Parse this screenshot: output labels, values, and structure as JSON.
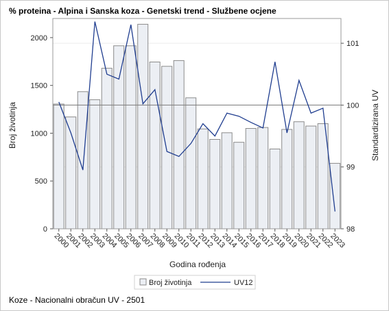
{
  "title": "% proteina - Alpina i Sanska koza - Genetski trend - Službene ocjene",
  "footer": "Koze - Nacionalni obračun UV - 2501",
  "chart_data": {
    "type": "bar+line",
    "categories": [
      "2000",
      "2001",
      "2002",
      "2003",
      "2004",
      "2005",
      "2006",
      "2007",
      "2008",
      "2009",
      "2010",
      "2011",
      "2012",
      "2013",
      "2014",
      "2015",
      "2016",
      "2017",
      "2018",
      "2019",
      "2020",
      "2021",
      "2022",
      "2023"
    ],
    "series": [
      {
        "name": "Broj životinja",
        "type": "bar",
        "axis": "left",
        "values": [
          1305,
          1170,
          1435,
          1350,
          1680,
          1915,
          1915,
          2140,
          1745,
          1700,
          1760,
          1370,
          1045,
          935,
          1005,
          905,
          1050,
          1060,
          835,
          1040,
          1120,
          1075,
          1100,
          685
        ]
      },
      {
        "name": "UV12",
        "type": "line",
        "axis": "right",
        "values": [
          100.05,
          99.55,
          98.95,
          101.35,
          100.5,
          100.42,
          101.3,
          100.02,
          100.25,
          99.25,
          99.17,
          99.38,
          99.7,
          99.5,
          99.87,
          99.82,
          99.72,
          99.63,
          100.7,
          99.55,
          100.4,
          99.87,
          99.95,
          98.28
        ]
      }
    ],
    "xlabel": "Godina rođenja",
    "ylabel": "Broj životinja",
    "y2label": "Standardizirana UV",
    "ylim": [
      0,
      2200
    ],
    "yticks": [
      0,
      500,
      1000,
      1500,
      2000
    ],
    "y2lim": [
      98,
      101.4
    ],
    "y2ticks": [
      98,
      99,
      100,
      101
    ],
    "reference_line": 100,
    "legend_position": "bottom",
    "colors": {
      "bar_fill": "#eceff4",
      "bar_stroke": "#8a8a8a",
      "line": "#1f3d8f",
      "reference": "#7a7a7a"
    }
  }
}
